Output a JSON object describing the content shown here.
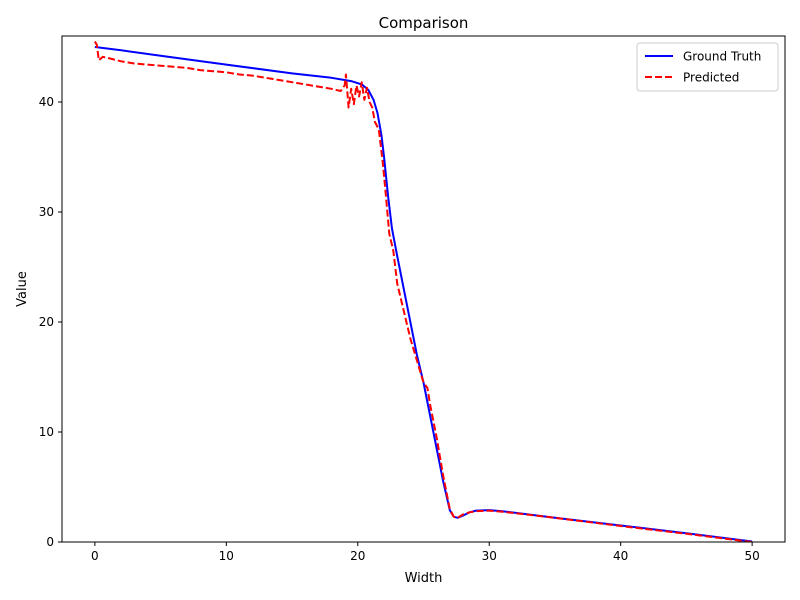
{
  "chart_data": {
    "type": "line",
    "title": "Comparison",
    "xlabel": "Width",
    "ylabel": "Value",
    "xlim": [
      -2.5,
      52.5
    ],
    "ylim": [
      0,
      46
    ],
    "xticks": [
      0,
      10,
      20,
      30,
      40,
      50
    ],
    "yticks": [
      0,
      10,
      20,
      30,
      40
    ],
    "grid": false,
    "legend_position": "top-right",
    "series": [
      {
        "name": "Ground Truth",
        "color": "#0000ff",
        "style": "solid",
        "x": [
          0,
          2,
          5,
          10,
          15,
          18,
          19.5,
          20.3,
          20.8,
          21.2,
          21.5,
          21.8,
          22.0,
          22.3,
          22.6,
          23.0,
          23.5,
          24.0,
          24.5,
          25.0,
          25.5,
          26.0,
          26.5,
          27.0,
          27.3,
          27.6,
          28.0,
          28.5,
          29.0,
          30.0,
          31.0,
          35.0,
          40.0,
          45.0,
          50.0
        ],
        "y": [
          45.0,
          44.7,
          44.2,
          43.4,
          42.6,
          42.2,
          41.9,
          41.6,
          41.1,
          40.2,
          39.0,
          37.0,
          35.0,
          31.5,
          28.5,
          26.0,
          23.0,
          20.0,
          17.0,
          14.5,
          11.5,
          8.5,
          5.5,
          2.9,
          2.3,
          2.2,
          2.4,
          2.7,
          2.85,
          2.9,
          2.8,
          2.2,
          1.5,
          0.8,
          0.05
        ]
      },
      {
        "name": "Predicted",
        "color": "#ff0000",
        "style": "dashed",
        "x": [
          0,
          0.15,
          0.3,
          0.6,
          1,
          2,
          3,
          4,
          5,
          6,
          7,
          8,
          9,
          10,
          11,
          12,
          13,
          14,
          15,
          16,
          17,
          18,
          18.7,
          19.0,
          19.1,
          19.3,
          19.5,
          19.7,
          19.9,
          20.1,
          20.3,
          20.5,
          20.7,
          20.9,
          21.1,
          21.3,
          21.6,
          21.9,
          22.1,
          22.4,
          22.7,
          23.0,
          23.5,
          24.0,
          24.5,
          25.0,
          25.3,
          25.5,
          26.0,
          26.5,
          27.0,
          27.3,
          27.6,
          28.0,
          28.5,
          29.0,
          30.0,
          31.0,
          35.0,
          40.0,
          45.0,
          50.0
        ],
        "y": [
          45.5,
          45.2,
          43.8,
          44.1,
          44.0,
          43.7,
          43.5,
          43.4,
          43.3,
          43.2,
          43.1,
          42.9,
          42.8,
          42.7,
          42.5,
          42.4,
          42.2,
          42.0,
          41.8,
          41.6,
          41.4,
          41.2,
          41.0,
          41.5,
          42.5,
          39.5,
          41.2,
          39.8,
          41.5,
          40.5,
          41.8,
          40.2,
          41.3,
          40.0,
          39.5,
          38.2,
          37.5,
          34.5,
          32.0,
          28.0,
          26.5,
          23.5,
          21.0,
          18.5,
          16.5,
          14.5,
          14.0,
          12.5,
          9.5,
          6.0,
          3.0,
          2.3,
          2.2,
          2.5,
          2.7,
          2.8,
          2.85,
          2.75,
          2.2,
          1.45,
          0.75,
          0.0
        ]
      }
    ]
  }
}
